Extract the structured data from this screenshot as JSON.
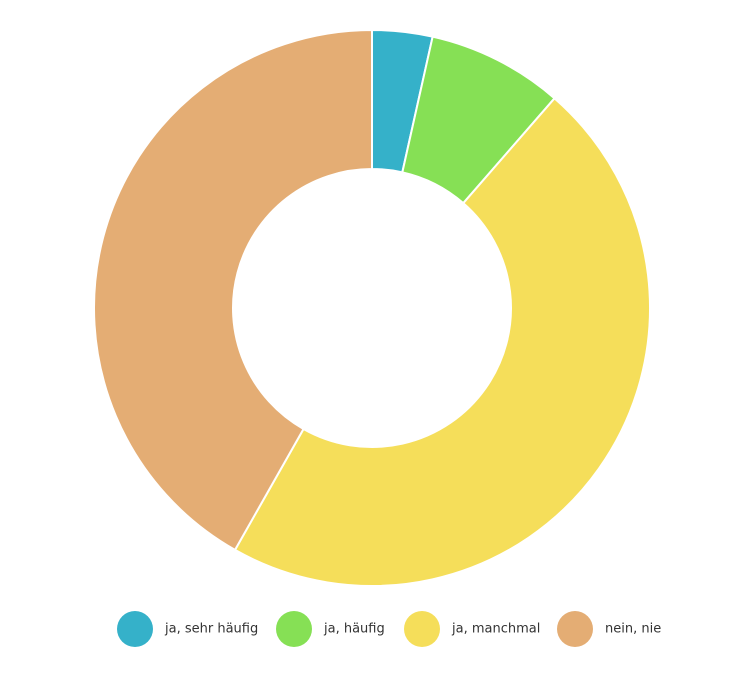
{
  "chart_data": {
    "type": "donut",
    "categories": [
      "ja, sehr häufig",
      "ja, häufig",
      "ja, manchmal",
      "nein, nie"
    ],
    "values": [
      3.5,
      7.9,
      46.8,
      41.8
    ],
    "colors": [
      "#35b1c9",
      "#86e055",
      "#f5de5a",
      "#e4ad74"
    ],
    "legend": "bottom"
  }
}
